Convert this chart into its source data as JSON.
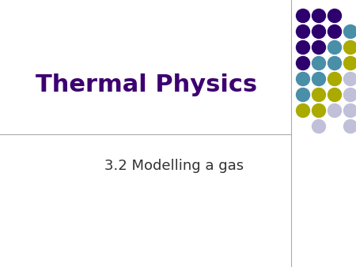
{
  "title": "Thermal Physics",
  "subtitle": "3.2 Modelling a gas",
  "title_color": "#3D0070",
  "subtitle_color": "#333333",
  "bg_color": "#FFFFFF",
  "title_fontsize": 22,
  "subtitle_fontsize": 13,
  "line_color": "#AAAAAA",
  "dot_colors": {
    "purple": "#2E006E",
    "teal": "#4A8FA8",
    "yellow": "#AAAA00",
    "light": "#C0C0D8"
  },
  "dots": [
    {
      "row": 0,
      "col": 0,
      "color": "purple"
    },
    {
      "row": 0,
      "col": 1,
      "color": "purple"
    },
    {
      "row": 0,
      "col": 2,
      "color": "purple"
    },
    {
      "row": 1,
      "col": 0,
      "color": "purple"
    },
    {
      "row": 1,
      "col": 1,
      "color": "purple"
    },
    {
      "row": 1,
      "col": 2,
      "color": "purple"
    },
    {
      "row": 1,
      "col": 3,
      "color": "teal"
    },
    {
      "row": 2,
      "col": 0,
      "color": "purple"
    },
    {
      "row": 2,
      "col": 1,
      "color": "purple"
    },
    {
      "row": 2,
      "col": 2,
      "color": "teal"
    },
    {
      "row": 2,
      "col": 3,
      "color": "yellow"
    },
    {
      "row": 3,
      "col": 0,
      "color": "purple"
    },
    {
      "row": 3,
      "col": 1,
      "color": "teal"
    },
    {
      "row": 3,
      "col": 2,
      "color": "teal"
    },
    {
      "row": 3,
      "col": 3,
      "color": "yellow"
    },
    {
      "row": 4,
      "col": 0,
      "color": "teal"
    },
    {
      "row": 4,
      "col": 1,
      "color": "teal"
    },
    {
      "row": 4,
      "col": 2,
      "color": "yellow"
    },
    {
      "row": 4,
      "col": 3,
      "color": "light"
    },
    {
      "row": 5,
      "col": 0,
      "color": "teal"
    },
    {
      "row": 5,
      "col": 1,
      "color": "yellow"
    },
    {
      "row": 5,
      "col": 2,
      "color": "yellow"
    },
    {
      "row": 5,
      "col": 3,
      "color": "light"
    },
    {
      "row": 6,
      "col": 0,
      "color": "yellow"
    },
    {
      "row": 6,
      "col": 1,
      "color": "yellow"
    },
    {
      "row": 6,
      "col": 2,
      "color": "light"
    },
    {
      "row": 6,
      "col": 3,
      "color": "light"
    },
    {
      "row": 7,
      "col": 1,
      "color": "light"
    },
    {
      "row": 7,
      "col": 3,
      "color": "light"
    }
  ]
}
